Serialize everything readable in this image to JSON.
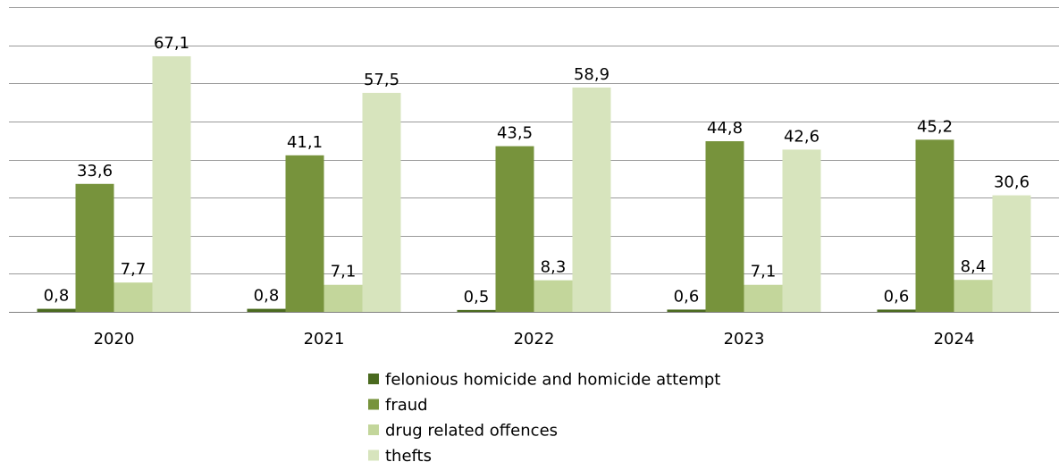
{
  "chart_data": {
    "type": "bar",
    "categories": [
      "2020",
      "2021",
      "2022",
      "2023",
      "2024"
    ],
    "series": [
      {
        "name": "felonious homicide and homicide attempt",
        "color": "#4a6a1f",
        "values": [
          0.8,
          0.8,
          0.5,
          0.6,
          0.6
        ],
        "labels": [
          "0,8",
          "0,8",
          "0,5",
          "0,6",
          "0,6"
        ]
      },
      {
        "name": "fraud",
        "color": "#77933c",
        "values": [
          33.6,
          41.1,
          43.5,
          44.8,
          45.2
        ],
        "labels": [
          "33,6",
          "41,1",
          "43,5",
          "44,8",
          "45,2"
        ]
      },
      {
        "name": "drug related offences",
        "color": "#c3d69b",
        "values": [
          7.7,
          7.1,
          8.3,
          7.1,
          8.4
        ],
        "labels": [
          "7,7",
          "7,1",
          "8,3",
          "7,1",
          "8,4"
        ]
      },
      {
        "name": "thefts",
        "color": "#d7e4bd",
        "values": [
          67.1,
          57.5,
          58.9,
          42.6,
          30.6
        ],
        "labels": [
          "67,1",
          "57,5",
          "58,9",
          "42,6",
          "30,6"
        ]
      }
    ],
    "ylim": [
      0,
      80
    ],
    "y_gridlines": [
      0,
      10,
      20,
      30,
      40,
      50,
      60,
      70,
      80
    ],
    "y_tick_labels_shown": false,
    "grid": true,
    "legend_position": "bottom"
  }
}
